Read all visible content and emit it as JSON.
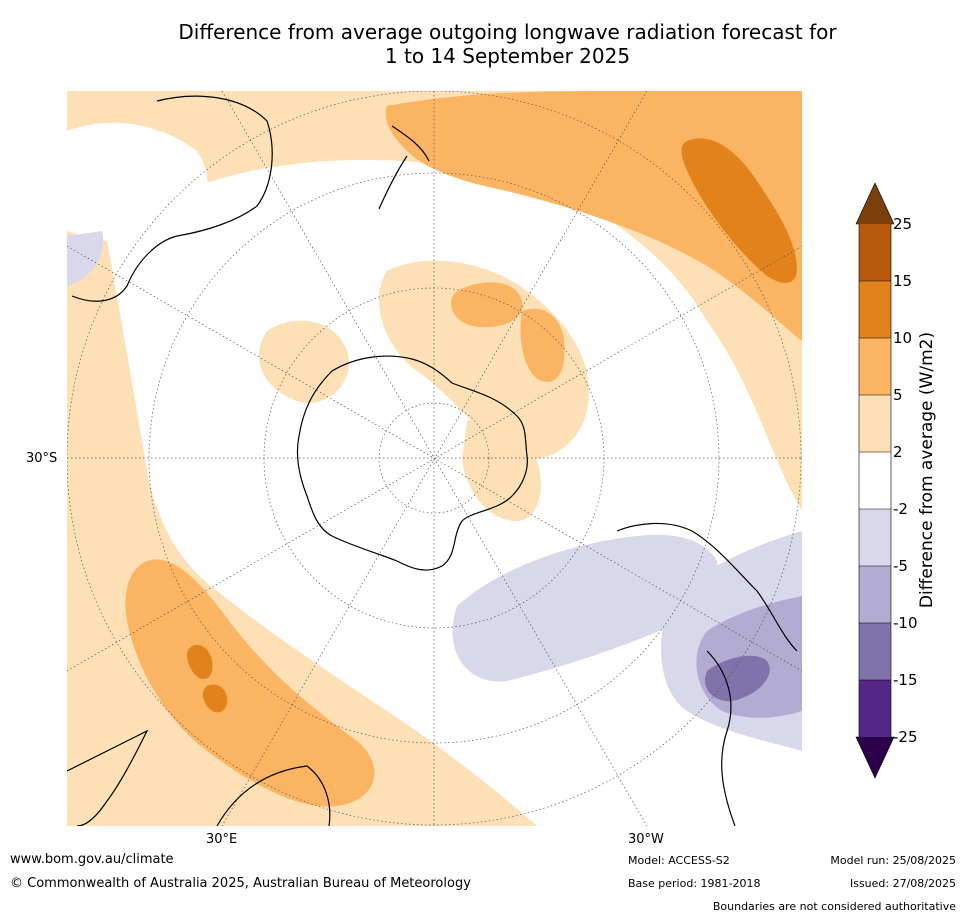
{
  "title": {
    "line1": "Difference from average outgoing longwave radiation forecast for",
    "line2": "1 to 14 September 2025"
  },
  "map": {
    "projection": "south-polar-stereographic",
    "lat_label": "30°S",
    "lon_labels": [
      "30°E",
      "30°W"
    ]
  },
  "colorbar": {
    "title": "Difference from average (W/m2)",
    "labels": [
      "25",
      "15",
      "10",
      "5",
      "2",
      "-2",
      "-5",
      "-10",
      "-15",
      "-25"
    ],
    "colors": [
      "#7a3f0a",
      "#b45a0a",
      "#e2821a",
      "#fbb562",
      "#fde0b5",
      "#ffffff",
      "#d8d8ea",
      "#b2abd2",
      "#8073ac",
      "#542788",
      "#2d004b"
    ]
  },
  "footer": {
    "website": "www.bom.gov.au/climate",
    "copyright": "© Commonwealth of Australia 2025, Australian Bureau of Meteorology",
    "model": "Model: ACCESS-S2",
    "base_period": "Base period: 1981-2018",
    "model_run": "Model run: 25/08/2025",
    "issued": "Issued: 27/08/2025",
    "disclaimer": "Boundaries are not considered authoritative"
  }
}
